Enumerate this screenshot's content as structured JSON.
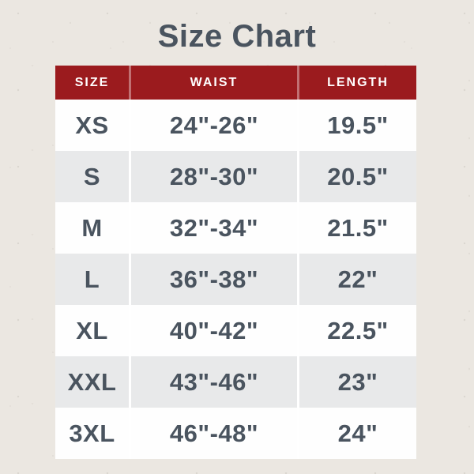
{
  "title": "Size Chart",
  "theme": {
    "page_bg": "#ebe7e1",
    "header_bg": "#9b1b1e",
    "header_text": "#ffffff",
    "ink": "#4a545f",
    "row_bg": "#fefefe",
    "row_alt_bg": "#e8e9ea",
    "divider": "#ffffff"
  },
  "table": {
    "columns": [
      "SIZE",
      "WAIST",
      "LENGTH"
    ],
    "rows": [
      {
        "size": "XS",
        "waist": "24\"-26\"",
        "length": "19.5\""
      },
      {
        "size": "S",
        "waist": "28\"-30\"",
        "length": "20.5\""
      },
      {
        "size": "M",
        "waist": "32\"-34\"",
        "length": "21.5\""
      },
      {
        "size": "L",
        "waist": "36\"-38\"",
        "length": "22\""
      },
      {
        "size": "XL",
        "waist": "40\"-42\"",
        "length": "22.5\""
      },
      {
        "size": "XXL",
        "waist": "43\"-46\"",
        "length": "23\""
      },
      {
        "size": "3XL",
        "waist": "46\"-48\"",
        "length": "24\""
      }
    ]
  },
  "chart_data": {
    "type": "table",
    "title": "Size Chart",
    "columns": [
      "SIZE",
      "WAIST",
      "LENGTH"
    ],
    "rows": [
      [
        "XS",
        "24\"-26\"",
        "19.5\""
      ],
      [
        "S",
        "28\"-30\"",
        "20.5\""
      ],
      [
        "M",
        "32\"-34\"",
        "21.5\""
      ],
      [
        "L",
        "36\"-38\"",
        "22\""
      ],
      [
        "XL",
        "40\"-42\"",
        "22.5\""
      ],
      [
        "XXL",
        "43\"-46\"",
        "23\""
      ],
      [
        "3XL",
        "46\"-48\"",
        "24\""
      ]
    ]
  }
}
